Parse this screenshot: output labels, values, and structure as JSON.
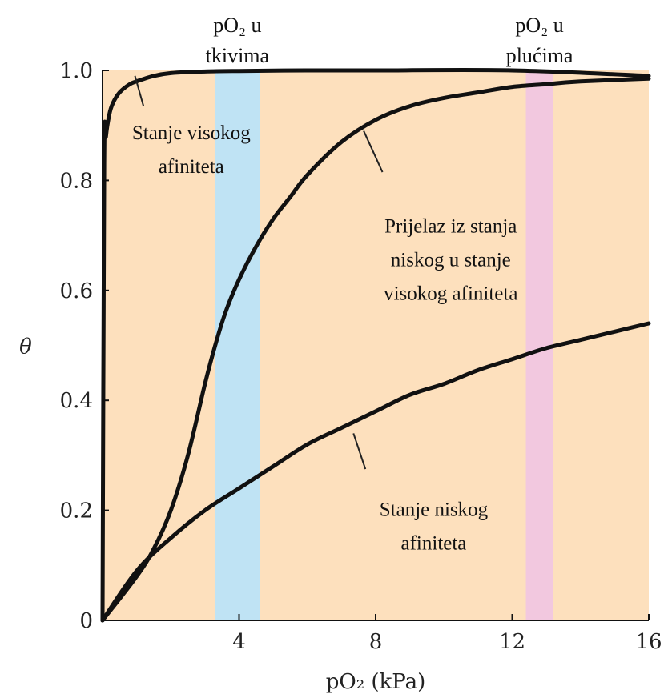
{
  "chart_data": {
    "type": "line",
    "xlabel": "pO₂ (kPa)",
    "ylabel": "θ",
    "xlim": [
      0,
      16
    ],
    "ylim": [
      0,
      1.0
    ],
    "x_ticks": [
      {
        "value": 4,
        "label": "4"
      },
      {
        "value": 8,
        "label": "8"
      },
      {
        "value": 12,
        "label": "12"
      },
      {
        "value": 16,
        "label": "16"
      }
    ],
    "y_ticks": [
      {
        "value": 0,
        "label": "0"
      },
      {
        "value": 0.2,
        "label": "0.2"
      },
      {
        "value": 0.4,
        "label": "0.4"
      },
      {
        "value": 0.6,
        "label": "0.6"
      },
      {
        "value": 0.8,
        "label": "0.8"
      },
      {
        "value": 1.0,
        "label": "1.0"
      }
    ],
    "grid": false,
    "background_color": "#fde0bd",
    "line_color": "#111111",
    "shaded_regions": [
      {
        "x_range": [
          3.3,
          4.6
        ],
        "color": "#bfe3f4",
        "label_line1": "pO₂ u",
        "label_line2": "tkivima"
      },
      {
        "x_range": [
          12.4,
          13.2
        ],
        "color": "#f2c8df",
        "label_line1": "pO₂ u",
        "label_line2": "plućima"
      }
    ],
    "series": [
      {
        "x": [
          0,
          0.05,
          0.1,
          0.2,
          0.3,
          0.5,
          0.8,
          1.0,
          1.5,
          2.0,
          3.0,
          4.0,
          6.0,
          8.0,
          12.0,
          16.0
        ],
        "y": [
          0,
          0.83,
          0.88,
          0.92,
          0.94,
          0.96,
          0.975,
          0.98,
          0.99,
          0.995,
          0.998,
          0.999,
          1.0,
          1.0,
          1.0,
          0.99
        ]
      },
      {
        "x": [
          0,
          1.0,
          1.5,
          2.0,
          2.5,
          3.0,
          3.3,
          3.6,
          4.0,
          4.5,
          5.0,
          5.5,
          6.0,
          7.0,
          8.0,
          9.0,
          10.0,
          11.0,
          12.0,
          13.0,
          14.0,
          16.0
        ],
        "y": [
          0,
          0.08,
          0.13,
          0.2,
          0.3,
          0.43,
          0.5,
          0.56,
          0.62,
          0.68,
          0.73,
          0.77,
          0.81,
          0.87,
          0.91,
          0.935,
          0.95,
          0.96,
          0.97,
          0.975,
          0.98,
          0.985
        ]
      },
      {
        "x": [
          0,
          1.0,
          2.0,
          3.0,
          4.0,
          5.0,
          6.0,
          7.0,
          8.0,
          9.0,
          10.0,
          11.0,
          12.0,
          13.0,
          14.0,
          15.0,
          16.0
        ],
        "y": [
          0,
          0.09,
          0.15,
          0.2,
          0.24,
          0.28,
          0.32,
          0.35,
          0.38,
          0.41,
          0.43,
          0.455,
          0.475,
          0.495,
          0.51,
          0.525,
          0.54
        ]
      }
    ],
    "annotations": [
      {
        "lines": [
          "Stanje visokog",
          "afiniteta"
        ],
        "pointer_from": [
          1.2,
          0.935
        ],
        "pointer_to": [
          0.95,
          0.99
        ],
        "anchor": [
          2.6,
          0.875
        ]
      },
      {
        "lines": [
          "Prijelaz iz stanja",
          "niskog u stanje",
          "visokog afiniteta"
        ],
        "pointer_from": [
          8.2,
          0.815
        ],
        "pointer_to": [
          7.65,
          0.89
        ],
        "anchor": [
          10.2,
          0.705
        ]
      },
      {
        "lines": [
          "Stanje niskog",
          "afiniteta"
        ],
        "pointer_from": [
          7.7,
          0.275
        ],
        "pointer_to": [
          7.35,
          0.34
        ],
        "anchor": [
          9.7,
          0.19
        ]
      }
    ]
  }
}
